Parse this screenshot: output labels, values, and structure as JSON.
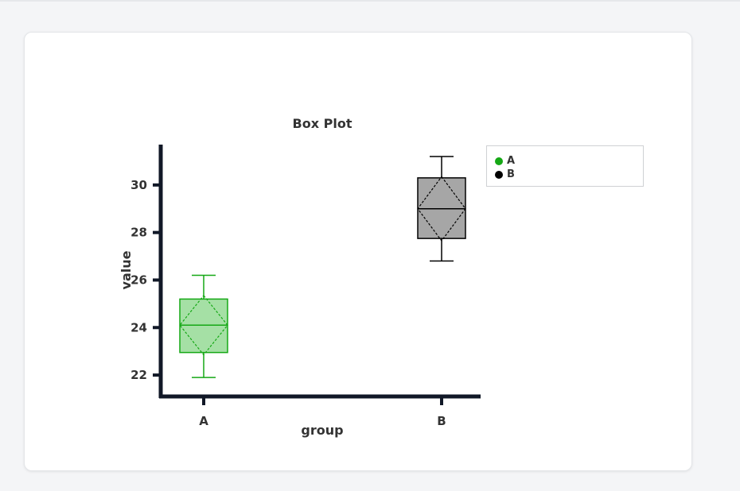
{
  "chart_data": {
    "type": "box",
    "title": "Box Plot",
    "xlabel": "group",
    "ylabel": "value",
    "ylim": [
      21.1,
      31.7
    ],
    "yticks": [
      22,
      24,
      26,
      28,
      30
    ],
    "categories": [
      "A",
      "B"
    ],
    "series": [
      {
        "name": "A",
        "color": "#15a815",
        "fill": "#a5e0a5",
        "min": 21.9,
        "q1": 22.95,
        "median": 24.1,
        "q3": 25.2,
        "max": 26.2,
        "mean": 24.1,
        "sd": 1.25
      },
      {
        "name": "B",
        "color": "#000000",
        "fill": "#a6a6a6",
        "min": 26.8,
        "q1": 27.75,
        "median": 29.0,
        "q3": 30.3,
        "max": 31.2,
        "mean": 29.0,
        "sd": 1.35
      }
    ],
    "legend": {
      "position": "top-right",
      "entries": [
        "A",
        "B"
      ]
    }
  }
}
